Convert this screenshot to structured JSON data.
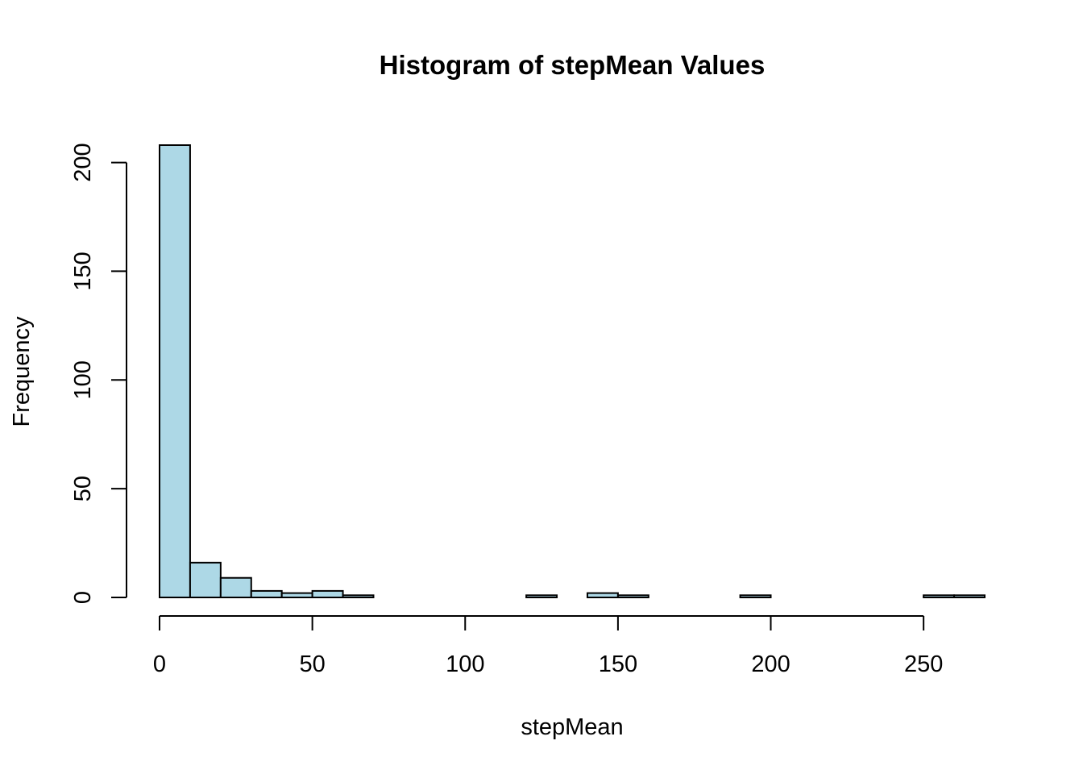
{
  "chart_data": {
    "type": "bar",
    "title": "Histogram of stepMean Values",
    "xlabel": "stepMean",
    "ylabel": "Frequency",
    "bar_color": "#add8e6",
    "border_color": "#000000",
    "bin_width": 10,
    "bins": [
      {
        "x0": 0,
        "x1": 10,
        "count": 208
      },
      {
        "x0": 10,
        "x1": 20,
        "count": 16
      },
      {
        "x0": 20,
        "x1": 30,
        "count": 9
      },
      {
        "x0": 30,
        "x1": 40,
        "count": 3
      },
      {
        "x0": 40,
        "x1": 50,
        "count": 2
      },
      {
        "x0": 50,
        "x1": 60,
        "count": 3
      },
      {
        "x0": 60,
        "x1": 70,
        "count": 1
      },
      {
        "x0": 70,
        "x1": 80,
        "count": 0
      },
      {
        "x0": 80,
        "x1": 90,
        "count": 0
      },
      {
        "x0": 90,
        "x1": 100,
        "count": 0
      },
      {
        "x0": 100,
        "x1": 110,
        "count": 0
      },
      {
        "x0": 110,
        "x1": 120,
        "count": 0
      },
      {
        "x0": 120,
        "x1": 130,
        "count": 1
      },
      {
        "x0": 130,
        "x1": 140,
        "count": 0
      },
      {
        "x0": 140,
        "x1": 150,
        "count": 2
      },
      {
        "x0": 150,
        "x1": 160,
        "count": 1
      },
      {
        "x0": 160,
        "x1": 170,
        "count": 0
      },
      {
        "x0": 170,
        "x1": 180,
        "count": 0
      },
      {
        "x0": 180,
        "x1": 190,
        "count": 0
      },
      {
        "x0": 190,
        "x1": 200,
        "count": 1
      },
      {
        "x0": 200,
        "x1": 210,
        "count": 0
      },
      {
        "x0": 210,
        "x1": 220,
        "count": 0
      },
      {
        "x0": 220,
        "x1": 230,
        "count": 0
      },
      {
        "x0": 230,
        "x1": 240,
        "count": 0
      },
      {
        "x0": 240,
        "x1": 250,
        "count": 0
      },
      {
        "x0": 250,
        "x1": 260,
        "count": 1
      },
      {
        "x0": 260,
        "x1": 270,
        "count": 1
      }
    ],
    "xlim": [
      0,
      270
    ],
    "ylim": [
      0,
      208
    ],
    "x_ticks": [
      0,
      50,
      100,
      150,
      200,
      250
    ],
    "y_ticks": [
      0,
      50,
      100,
      150,
      200
    ],
    "grid": false
  }
}
